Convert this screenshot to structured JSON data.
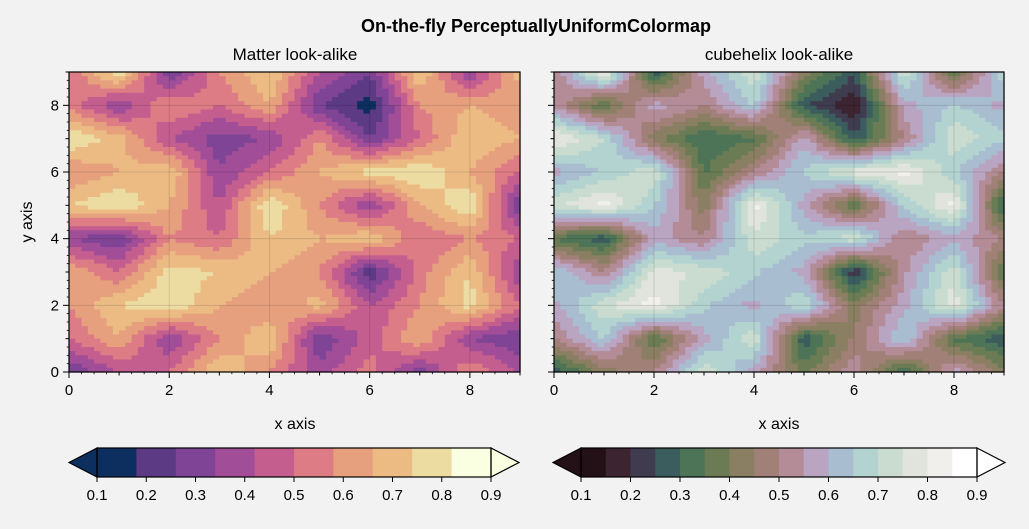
{
  "chart_data": {
    "type": "heatmap",
    "title": "On-the-fly PerceptuallyUniformColormap",
    "panels": [
      {
        "title": "Matter look-alike",
        "xlabel": "x axis",
        "ylabel": "y axis",
        "xlim": [
          0,
          9
        ],
        "ylim": [
          0,
          9
        ],
        "xticks": [
          "0",
          "2",
          "4",
          "6",
          "8"
        ],
        "yticks": [
          "0",
          "2",
          "4",
          "6",
          "8"
        ],
        "colors": [
          "#0d2f5f",
          "#5c3a84",
          "#7f4495",
          "#a14d97",
          "#c45e8f",
          "#dd7c84",
          "#e6a07e",
          "#ecbb84",
          "#eddca2",
          "#f9ffe0"
        ],
        "colorbar": {
          "ticks": [
            "0.1",
            "0.2",
            "0.3",
            "0.4",
            "0.5",
            "0.6",
            "0.7",
            "0.8",
            "0.9"
          ],
          "extend": "both"
        }
      },
      {
        "title": "cubehelix look-alike",
        "xlabel": "x axis",
        "ylabel": "",
        "xlim": [
          0,
          9
        ],
        "ylim": [
          0,
          9
        ],
        "xticks": [
          "0",
          "2",
          "4",
          "6",
          "8"
        ],
        "yticks": [
          "0",
          "2",
          "4",
          "6",
          "8"
        ],
        "colors": [
          "#241017",
          "#3c2430",
          "#3f3c4f",
          "#3c5d5d",
          "#4e7457",
          "#6b7c55",
          "#8a7f63",
          "#a08077",
          "#b48c98",
          "#b9a5c2",
          "#a9bdd0",
          "#b3d3d0",
          "#cadcd0",
          "#e0e4dc",
          "#f0efec",
          "#ffffff"
        ],
        "colorbar": {
          "ticks": [
            "0.1",
            "0.2",
            "0.3",
            "0.4",
            "0.5",
            "0.6",
            "0.7",
            "0.8",
            "0.9"
          ],
          "extend": "both"
        }
      }
    ],
    "z": [
      [
        0.2,
        0.4,
        0.5,
        0.8,
        0.6,
        0.35,
        0.55,
        0.25,
        0.6,
        0.4
      ],
      [
        0.5,
        0.7,
        0.3,
        0.6,
        0.8,
        0.2,
        0.45,
        0.7,
        0.3,
        0.2
      ],
      [
        0.6,
        0.8,
        0.9,
        0.7,
        0.6,
        0.75,
        0.4,
        0.6,
        0.85,
        0.5
      ],
      [
        0.7,
        0.5,
        0.85,
        0.8,
        0.7,
        0.6,
        0.12,
        0.55,
        0.8,
        0.3
      ],
      [
        0.3,
        0.2,
        0.6,
        0.5,
        0.8,
        0.7,
        0.8,
        0.5,
        0.6,
        0.5
      ],
      [
        0.8,
        0.9,
        0.7,
        0.4,
        0.9,
        0.6,
        0.3,
        0.7,
        0.9,
        0.2
      ],
      [
        0.6,
        0.7,
        0.8,
        0.3,
        0.5,
        0.7,
        0.85,
        0.9,
        0.7,
        0.5
      ],
      [
        0.9,
        0.75,
        0.4,
        0.25,
        0.3,
        0.6,
        0.2,
        0.5,
        0.8,
        0.7
      ],
      [
        0.55,
        0.3,
        0.6,
        0.5,
        0.7,
        0.2,
        0.05,
        0.6,
        0.7,
        0.6
      ],
      [
        0.5,
        0.9,
        0.2,
        0.6,
        0.8,
        0.4,
        0.2,
        0.8,
        0.3,
        0.75
      ]
    ]
  }
}
